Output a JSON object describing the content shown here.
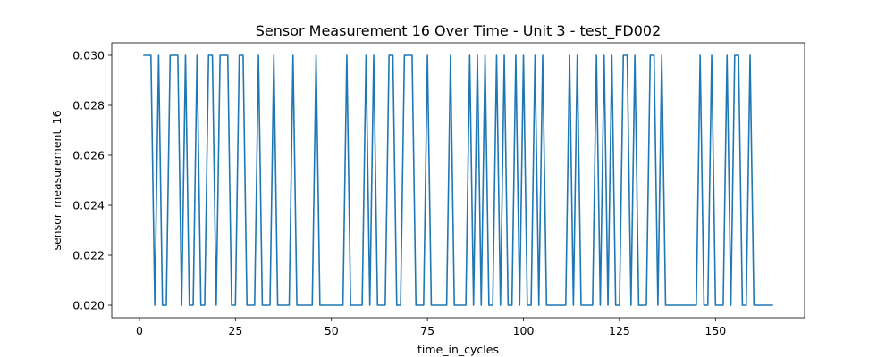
{
  "chart_data": {
    "type": "line",
    "title": "Sensor Measurement 16 Over Time - Unit 3 - test_FD002",
    "xlabel": "time_in_cycles",
    "ylabel": "sensor_measurement_16",
    "xlim": [
      -7.2,
      173.2
    ],
    "ylim": [
      0.0195,
      0.0305
    ],
    "xticks": [
      0,
      25,
      50,
      75,
      100,
      125,
      150
    ],
    "xtick_labels": [
      "0",
      "25",
      "50",
      "75",
      "100",
      "125",
      "150"
    ],
    "yticks": [
      0.02,
      0.022,
      0.024,
      0.026,
      0.028,
      0.03
    ],
    "ytick_labels": [
      "0.020",
      "0.022",
      "0.024",
      "0.026",
      "0.028",
      "0.030"
    ],
    "grid": false,
    "series": [
      {
        "color": "#1f77b4",
        "x": [
          1,
          2,
          3,
          4,
          5,
          6,
          7,
          8,
          9,
          10,
          11,
          12,
          13,
          14,
          15,
          16,
          17,
          18,
          19,
          20,
          21,
          22,
          23,
          24,
          25,
          26,
          27,
          28,
          29,
          30,
          31,
          32,
          33,
          34,
          35,
          36,
          37,
          38,
          39,
          40,
          41,
          42,
          43,
          44,
          45,
          46,
          47,
          48,
          49,
          50,
          51,
          52,
          53,
          54,
          55,
          56,
          57,
          58,
          59,
          60,
          61,
          62,
          63,
          64,
          65,
          66,
          67,
          68,
          69,
          70,
          71,
          72,
          73,
          74,
          75,
          76,
          77,
          78,
          79,
          80,
          81,
          82,
          83,
          84,
          85,
          86,
          87,
          88,
          89,
          90,
          91,
          92,
          93,
          94,
          95,
          96,
          97,
          98,
          99,
          100,
          101,
          102,
          103,
          104,
          105,
          106,
          107,
          108,
          109,
          110,
          111,
          112,
          113,
          114,
          115,
          116,
          117,
          118,
          119,
          120,
          121,
          122,
          123,
          124,
          125,
          126,
          127,
          128,
          129,
          130,
          131,
          132,
          133,
          134,
          135,
          136,
          137,
          138,
          139,
          140,
          141,
          142,
          143,
          144,
          145,
          146,
          147,
          148,
          149,
          150,
          151,
          152,
          153,
          154,
          155,
          156,
          157,
          158,
          159,
          160,
          161,
          162,
          163,
          164,
          165
        ],
        "y": [
          0.03,
          0.03,
          0.03,
          0.02,
          0.03,
          0.02,
          0.02,
          0.03,
          0.03,
          0.03,
          0.02,
          0.03,
          0.02,
          0.02,
          0.03,
          0.02,
          0.02,
          0.03,
          0.03,
          0.02,
          0.03,
          0.03,
          0.03,
          0.02,
          0.02,
          0.03,
          0.03,
          0.02,
          0.02,
          0.02,
          0.03,
          0.02,
          0.02,
          0.02,
          0.03,
          0.02,
          0.02,
          0.02,
          0.02,
          0.03,
          0.02,
          0.02,
          0.02,
          0.02,
          0.02,
          0.03,
          0.02,
          0.02,
          0.02,
          0.02,
          0.02,
          0.02,
          0.02,
          0.03,
          0.02,
          0.02,
          0.02,
          0.02,
          0.03,
          0.02,
          0.03,
          0.02,
          0.02,
          0.02,
          0.03,
          0.03,
          0.02,
          0.02,
          0.03,
          0.03,
          0.03,
          0.02,
          0.02,
          0.02,
          0.03,
          0.02,
          0.02,
          0.02,
          0.02,
          0.02,
          0.03,
          0.02,
          0.02,
          0.02,
          0.02,
          0.03,
          0.02,
          0.03,
          0.02,
          0.03,
          0.02,
          0.02,
          0.03,
          0.02,
          0.03,
          0.02,
          0.02,
          0.03,
          0.02,
          0.03,
          0.02,
          0.02,
          0.03,
          0.02,
          0.03,
          0.02,
          0.02,
          0.02,
          0.02,
          0.02,
          0.02,
          0.03,
          0.02,
          0.03,
          0.02,
          0.02,
          0.02,
          0.02,
          0.03,
          0.02,
          0.03,
          0.02,
          0.03,
          0.02,
          0.02,
          0.03,
          0.03,
          0.02,
          0.03,
          0.02,
          0.02,
          0.02,
          0.03,
          0.03,
          0.02,
          0.03,
          0.02,
          0.02,
          0.02,
          0.02,
          0.02,
          0.02,
          0.02,
          0.02,
          0.02,
          0.03,
          0.02,
          0.02,
          0.03,
          0.02,
          0.02,
          0.02,
          0.03,
          0.02,
          0.03,
          0.03,
          0.02,
          0.02,
          0.03,
          0.02,
          0.02,
          0.02,
          0.02,
          0.02,
          0.02
        ]
      }
    ]
  }
}
